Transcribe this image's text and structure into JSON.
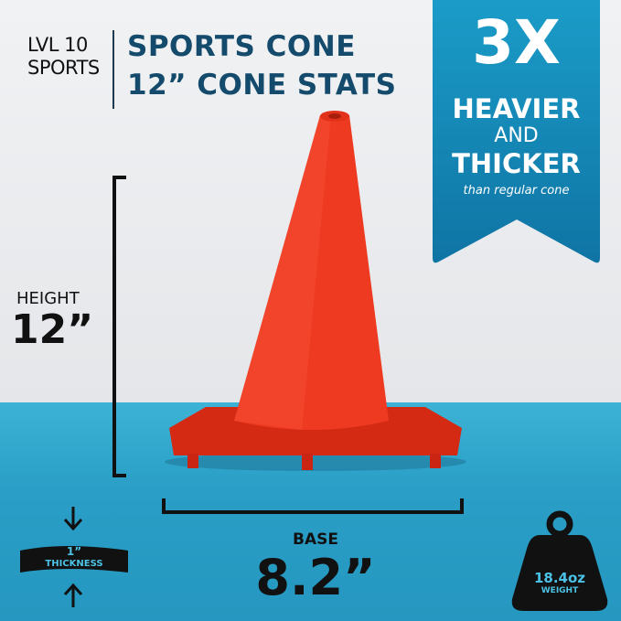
{
  "brand": {
    "line1": "LVL 10",
    "line2": "SPORTS"
  },
  "title": {
    "line1": "SPORTS CONE",
    "line2": "12” CONE STATS"
  },
  "banner": {
    "big": "3X",
    "line1": "HEAVIER",
    "line2": "AND",
    "line3": "THICKER",
    "sub": "than regular cone",
    "color": "#1786b5"
  },
  "height": {
    "label": "HEIGHT",
    "value": "12”"
  },
  "base": {
    "label": "BASE",
    "value": "8.2”"
  },
  "thickness": {
    "value": "1”",
    "label": "THICKNESS"
  },
  "weight": {
    "value": "18.4oz",
    "label": "WEIGHT"
  },
  "colors": {
    "cone": "#e8351d",
    "floor": "#2aa1c8",
    "title": "#144a6b"
  }
}
